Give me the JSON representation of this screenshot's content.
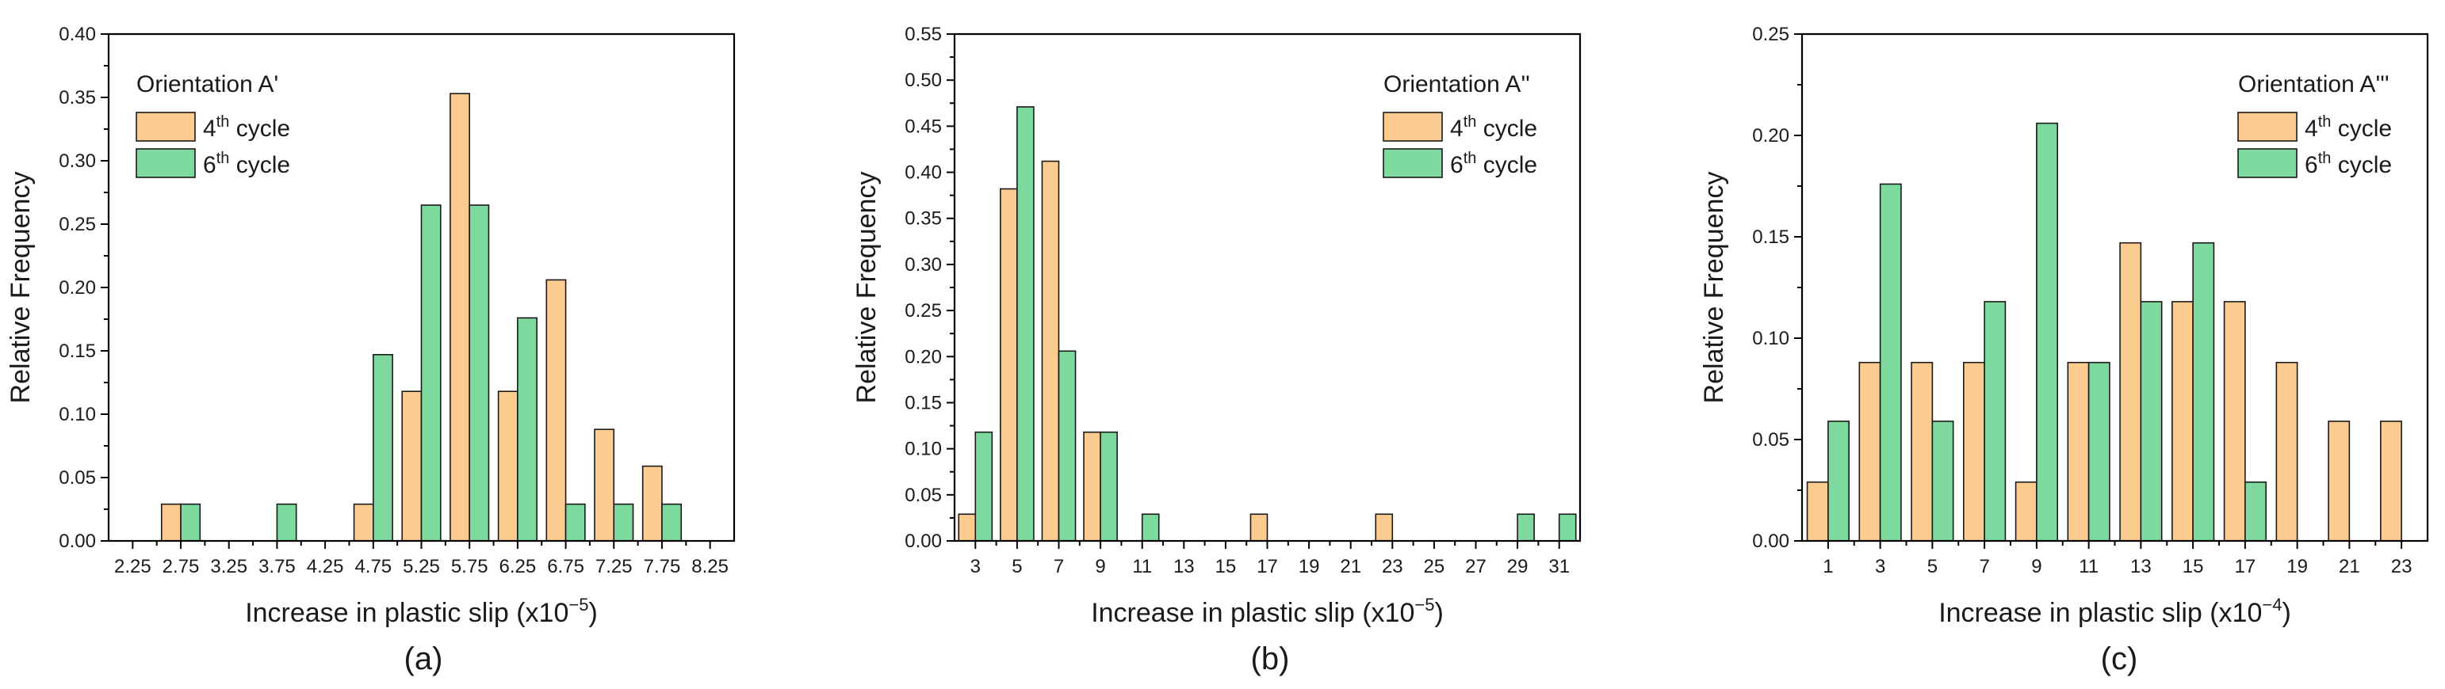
{
  "colors": {
    "cycle4": "#FBCB8F",
    "cycle6": "#7DD99D",
    "axis": "#000000"
  },
  "chart_data": [
    {
      "type": "bar",
      "caption": "(a)",
      "legend_title": "Orientation A'",
      "legend_position": "top-left",
      "xlabel_main": "Increase in plastic slip (x10",
      "xlabel_exp": "−5",
      "xlabel_end": ")",
      "ylabel": "Relative Frequency",
      "ylim": [
        0,
        0.4
      ],
      "yticks": [
        "0.00",
        "0.05",
        "0.10",
        "0.15",
        "0.20",
        "0.25",
        "0.30",
        "0.35",
        "0.40"
      ],
      "categories": [
        "2.25",
        "2.75",
        "3.25",
        "3.75",
        "4.25",
        "4.75",
        "5.25",
        "5.75",
        "6.25",
        "6.75",
        "7.25",
        "7.75",
        "8.25"
      ],
      "series": [
        {
          "name": "4",
          "name_sup": "th",
          "name_rest": " cycle",
          "values": [
            0,
            0.029,
            0,
            0,
            0,
            0.029,
            0.118,
            0.353,
            0.118,
            0.206,
            0.088,
            0.059,
            0
          ]
        },
        {
          "name": "6",
          "name_sup": "th",
          "name_rest": " cycle",
          "values": [
            0,
            0.029,
            0,
            0.029,
            0,
            0.147,
            0.265,
            0.265,
            0.176,
            0.029,
            0.029,
            0.029,
            0
          ]
        }
      ]
    },
    {
      "type": "bar",
      "caption": "(b)",
      "legend_title": "Orientation A''",
      "legend_position": "top-right",
      "xlabel_main": "Increase in plastic slip (x10",
      "xlabel_exp": "−5",
      "xlabel_end": ")",
      "ylabel": "Relative Frequency",
      "ylim": [
        0,
        0.55
      ],
      "yticks": [
        "0.00",
        "0.05",
        "0.10",
        "0.15",
        "0.20",
        "0.25",
        "0.30",
        "0.35",
        "0.40",
        "0.45",
        "0.50",
        "0.55"
      ],
      "categories": [
        "3",
        "5",
        "7",
        "9",
        "11",
        "13",
        "15",
        "17",
        "19",
        "21",
        "23",
        "25",
        "27",
        "29",
        "31"
      ],
      "series": [
        {
          "name": "4",
          "name_sup": "th",
          "name_rest": " cycle",
          "values": [
            0.029,
            0.382,
            0.412,
            0.118,
            0,
            0,
            0,
            0.029,
            0,
            0,
            0.029,
            0,
            0,
            0,
            0
          ]
        },
        {
          "name": "6",
          "name_sup": "th",
          "name_rest": " cycle",
          "values": [
            0.118,
            0.471,
            0.206,
            0.118,
            0.029,
            0,
            0,
            0,
            0,
            0,
            0,
            0,
            0,
            0.029,
            0.029
          ]
        }
      ]
    },
    {
      "type": "bar",
      "caption": "(c)",
      "legend_title": "Orientation A'''",
      "legend_position": "top-right",
      "xlabel_main": "Increase in plastic slip (x10",
      "xlabel_exp": "−4",
      "xlabel_end": ")",
      "ylabel": "Relative Frequency",
      "ylim": [
        0,
        0.25
      ],
      "yticks": [
        "0.00",
        "0.05",
        "0.10",
        "0.15",
        "0.20",
        "0.25"
      ],
      "categories": [
        "1",
        "3",
        "5",
        "7",
        "9",
        "11",
        "13",
        "15",
        "17",
        "19",
        "21",
        "23"
      ],
      "series": [
        {
          "name": "4",
          "name_sup": "th",
          "name_rest": " cycle",
          "values": [
            0.029,
            0.088,
            0.088,
            0.088,
            0.029,
            0.088,
            0.147,
            0.118,
            0.118,
            0.088,
            0.059,
            0.059
          ]
        },
        {
          "name": "6",
          "name_sup": "th",
          "name_rest": " cycle",
          "values": [
            0.059,
            0.176,
            0.059,
            0.118,
            0.206,
            0.088,
            0.118,
            0.147,
            0.029,
            0,
            0,
            0
          ]
        }
      ]
    }
  ]
}
